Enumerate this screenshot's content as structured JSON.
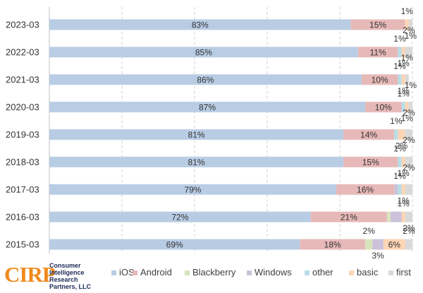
{
  "chart_data": {
    "type": "bar",
    "orientation": "horizontal",
    "stacked": true,
    "normalized": true,
    "categories": [
      "2023-03",
      "2022-03",
      "2021-03",
      "2020-03",
      "2019-03",
      "2018-03",
      "2017-03",
      "2016-03",
      "2015-03"
    ],
    "series": [
      {
        "name": "iOS",
        "color": "#b8cce4",
        "values": [
          83,
          85,
          86,
          87,
          81,
          81,
          79,
          72,
          69
        ],
        "labels": [
          "83%",
          "85%",
          "86%",
          "87%",
          "81%",
          "81%",
          "79%",
          "72%",
          "69%"
        ]
      },
      {
        "name": "Android",
        "color": "#e6b9b8",
        "values": [
          15,
          11,
          10,
          10,
          14,
          15,
          16,
          21,
          18
        ],
        "labels": [
          "15%",
          "11%",
          "10%",
          "10%",
          "14%",
          "15%",
          "16%",
          "21%",
          "18%"
        ]
      },
      {
        "name": "Blackberry",
        "color": "#d7e4bd",
        "values": [
          0,
          0,
          0,
          0,
          0,
          0,
          0,
          1,
          2
        ],
        "labels": [
          "",
          "",
          "",
          "",
          "",
          "",
          "",
          "",
          "2%"
        ]
      },
      {
        "name": "Windows",
        "color": "#ccc1da",
        "values": [
          0,
          0,
          0,
          0,
          0,
          0,
          1,
          3,
          3
        ],
        "labels": [
          "",
          "",
          "",
          "",
          "",
          "",
          "",
          "",
          "3%"
        ]
      },
      {
        "name": "other",
        "color": "#b7dee8",
        "values": [
          0,
          1,
          1,
          1,
          1,
          1,
          1,
          0,
          0
        ],
        "labels": [
          "",
          "1%",
          "1%",
          "1%",
          "1%",
          "1%",
          "1%",
          "",
          ""
        ]
      },
      {
        "name": "basic",
        "color": "#fcd5b5",
        "values": [
          1,
          1,
          1,
          1,
          2,
          1,
          1,
          1,
          6
        ],
        "labels": [
          "1%",
          "1%",
          "1%",
          "1%",
          "2%",
          "1%",
          "1%",
          "1%",
          "6%"
        ]
      },
      {
        "name": "first",
        "color": "#d9d9d9",
        "values": [
          1,
          2,
          1,
          1,
          2,
          2,
          2,
          2,
          2
        ],
        "labels": [
          "1%",
          "2%",
          "1%",
          "1%",
          "2%",
          "2%",
          "2%",
          "2%",
          "2%"
        ]
      }
    ],
    "xlim": [
      0,
      100
    ],
    "grid": true,
    "legend": "bottom"
  },
  "logo": {
    "mark": "CIRP",
    "lines": [
      "Consumer",
      "Intelligence",
      "Research",
      "Partners, LLC"
    ]
  }
}
